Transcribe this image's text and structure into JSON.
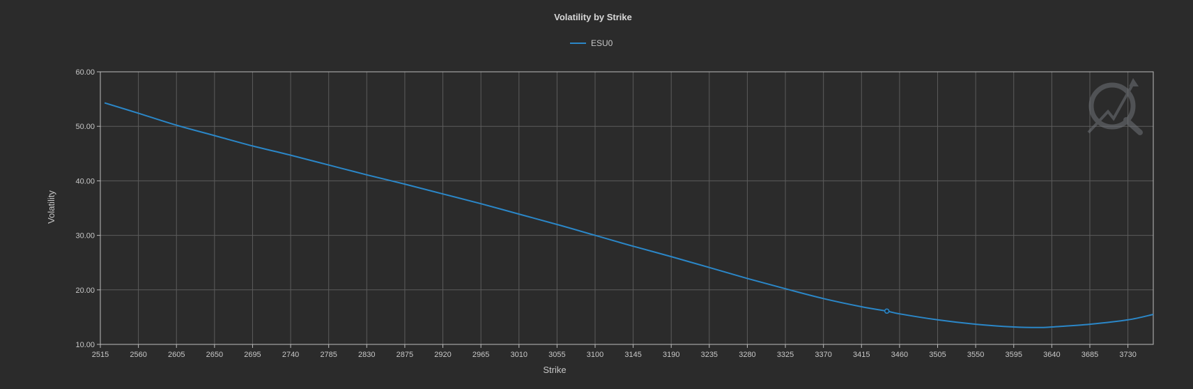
{
  "chart_data": {
    "type": "line",
    "title": "Volatility by Strike",
    "xlabel": "Strike",
    "ylabel": "Volatility",
    "legend": "top-center",
    "grid": true,
    "xlim": [
      2515,
      3760
    ],
    "ylim": [
      10,
      60
    ],
    "x_ticks": [
      "2515",
      "2560",
      "2605",
      "2650",
      "2695",
      "2740",
      "2785",
      "2830",
      "2875",
      "2920",
      "2965",
      "3010",
      "3055",
      "3100",
      "3145",
      "3190",
      "3235",
      "3280",
      "3325",
      "3370",
      "3415",
      "3460",
      "3505",
      "3550",
      "3595",
      "3640",
      "3685",
      "3730"
    ],
    "y_ticks": [
      "10.00",
      "20.00",
      "30.00",
      "40.00",
      "50.00",
      "60.00"
    ],
    "series": [
      {
        "name": "ESU0",
        "color": "#2b87c8",
        "x": [
          2520,
          2560,
          2605,
          2650,
          2695,
          2740,
          2785,
          2830,
          2875,
          2920,
          2965,
          3010,
          3055,
          3100,
          3145,
          3190,
          3235,
          3280,
          3325,
          3370,
          3415,
          3445,
          3460,
          3505,
          3550,
          3595,
          3625,
          3640,
          3685,
          3730,
          3760
        ],
        "y": [
          54.3,
          52.4,
          50.2,
          48.3,
          46.4,
          44.7,
          42.9,
          41.1,
          39.4,
          37.6,
          35.8,
          33.9,
          32.0,
          30.0,
          28.0,
          26.1,
          24.1,
          22.1,
          20.2,
          18.4,
          16.9,
          16.1,
          15.6,
          14.5,
          13.7,
          13.2,
          13.1,
          13.2,
          13.7,
          14.5,
          15.5
        ],
        "marker": {
          "x": 3445,
          "y": 16.1
        }
      }
    ]
  }
}
